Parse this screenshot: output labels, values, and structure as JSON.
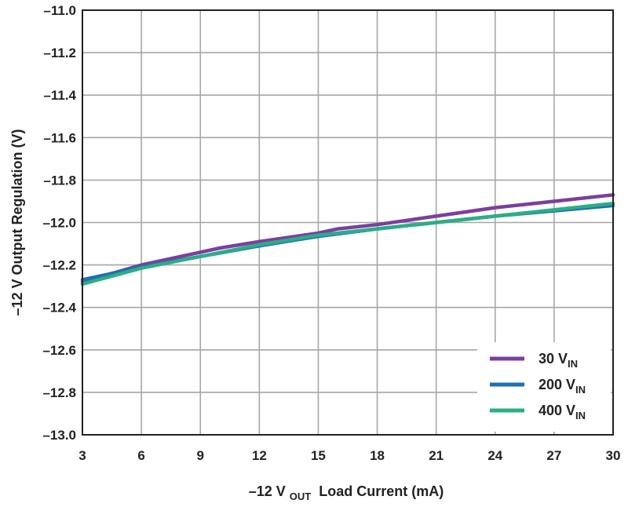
{
  "chart_data": {
    "type": "line",
    "xlabel": {
      "prefix": "–12 V",
      "sub": "OUT",
      "suffix": " Load Current (mA)"
    },
    "ylabel": "–12 V Output Regulation (V)",
    "xlim": [
      3,
      30
    ],
    "ylim": [
      -13.0,
      -11.0
    ],
    "xticks": [
      3,
      6,
      9,
      12,
      15,
      18,
      21,
      24,
      27,
      30
    ],
    "xtick_labels": [
      "3",
      "6",
      "9",
      "12",
      "15",
      "18",
      "21",
      "24",
      "27",
      "30"
    ],
    "yticks": [
      -11.0,
      -11.2,
      -11.4,
      -11.6,
      -11.8,
      -12.0,
      -12.2,
      -12.4,
      -12.6,
      -12.8,
      -13.0
    ],
    "ytick_labels": [
      "–11.0",
      "–11.2",
      "–11.4",
      "–11.6",
      "–11.8",
      "–12.0",
      "–12.2",
      "–12.4",
      "–12.6",
      "–12.8",
      "–13.0"
    ],
    "grid": true,
    "legend_position": "bottom-right",
    "series": [
      {
        "name": "30 V",
        "name_sub": "IN",
        "color": "#7B3F9E",
        "x": [
          3,
          6,
          9,
          10,
          12,
          15,
          16,
          18,
          21,
          24,
          27,
          30
        ],
        "y": [
          -12.28,
          -12.2,
          -12.14,
          -12.12,
          -12.09,
          -12.05,
          -12.03,
          -12.01,
          -11.97,
          -11.93,
          -11.9,
          -11.87
        ]
      },
      {
        "name": "200 V",
        "name_sub": "IN",
        "color": "#1F6FB2",
        "x": [
          3,
          6,
          9,
          12,
          15,
          18,
          21,
          24,
          27,
          30
        ],
        "y": [
          -12.27,
          -12.21,
          -12.16,
          -12.11,
          -12.065,
          -12.03,
          -12.0,
          -11.97,
          -11.945,
          -11.92
        ]
      },
      {
        "name": "400 V",
        "name_sub": "IN",
        "color": "#2BAE85",
        "x": [
          3,
          6,
          9,
          12,
          15,
          18,
          21,
          24,
          27,
          30
        ],
        "y": [
          -12.29,
          -12.215,
          -12.16,
          -12.105,
          -12.06,
          -12.03,
          -12.0,
          -11.97,
          -11.94,
          -11.91
        ]
      }
    ]
  }
}
